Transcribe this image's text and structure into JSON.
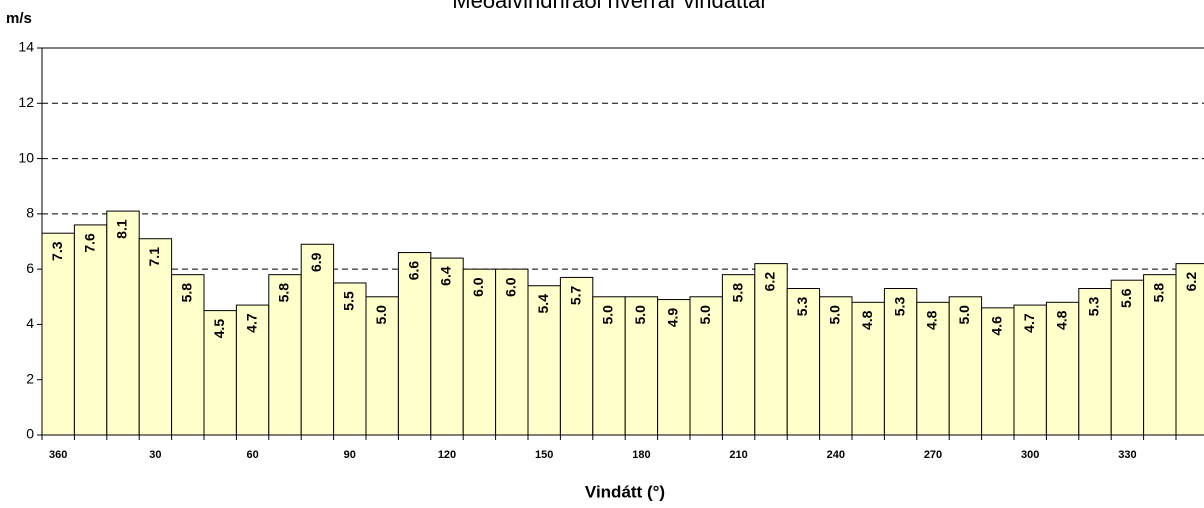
{
  "chart_data": {
    "type": "bar",
    "title": "Meðalvindhraði hverrar vindáttar",
    "y_label": "m/s",
    "x_label": "Vindátt (°)",
    "categories": [
      "360",
      null,
      null,
      "30",
      null,
      null,
      "60",
      null,
      null,
      "90",
      null,
      null,
      "120",
      null,
      null,
      "150",
      null,
      null,
      "180",
      null,
      null,
      "210",
      null,
      null,
      "240",
      null,
      null,
      "270",
      null,
      null,
      "300",
      null,
      null,
      "330",
      null,
      null
    ],
    "values": [
      7.3,
      7.6,
      8.1,
      7.1,
      5.8,
      4.5,
      4.7,
      5.8,
      6.9,
      5.5,
      5.0,
      6.6,
      6.4,
      6.0,
      6.0,
      5.4,
      5.7,
      5.0,
      5.0,
      4.9,
      5.0,
      5.8,
      6.2,
      5.3,
      5.0,
      4.8,
      5.3,
      4.8,
      5.0,
      4.6,
      4.7,
      4.8,
      5.3,
      5.6,
      5.8,
      6.2
    ],
    "value_labels": [
      "7.3",
      "7.6",
      "8.1",
      "7.1",
      "5.8",
      "4.5",
      "4.7",
      "5.8",
      "6.9",
      "5.5",
      "5.0",
      "6.6",
      "6.4",
      "6.0",
      "6.0",
      "5.4",
      "5.7",
      "5.0",
      "5.0",
      "4.9",
      "5.0",
      "5.8",
      "6.2",
      "5.3",
      "5.0",
      "4.8",
      "5.3",
      "4.8",
      "5.0",
      "4.6",
      "4.7",
      "4.8",
      "5.3",
      "5.6",
      "5.8",
      "6.2"
    ],
    "color": "#ffffcc",
    "ylim": [
      0,
      14
    ],
    "yticks": [
      0,
      2,
      4,
      6,
      8,
      10,
      12,
      14
    ],
    "grid": true
  }
}
